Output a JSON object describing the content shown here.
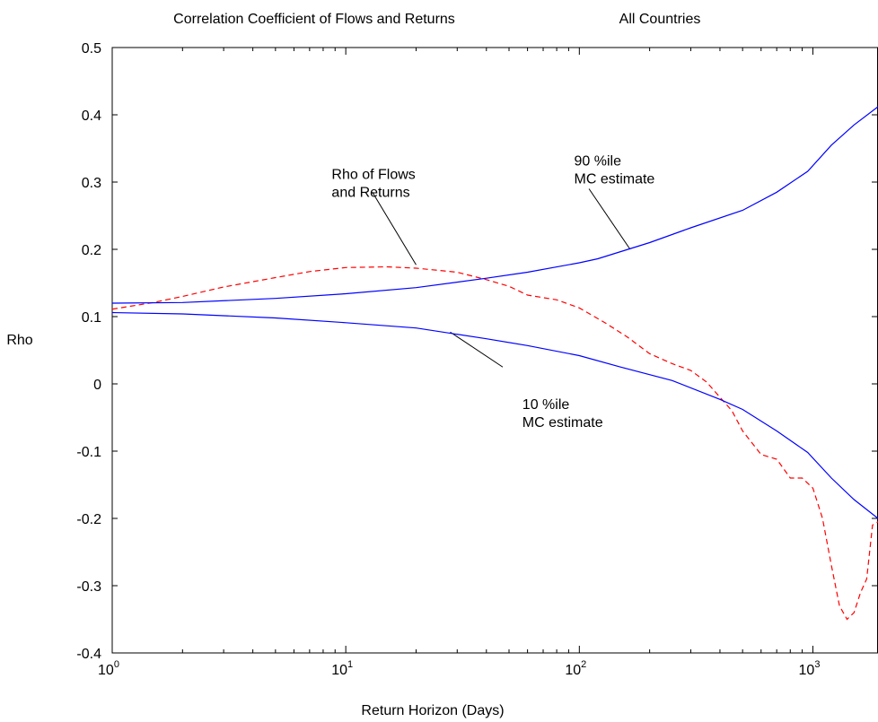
{
  "chart_data": {
    "type": "line",
    "title": "Correlation Coefficient of Flows and Returns",
    "subtitle": "All Countries",
    "xlabel": "Return Horizon (Days)",
    "ylabel": "Rho",
    "x_scale": "log",
    "xlim": [
      1,
      1900
    ],
    "ylim": [
      -0.4,
      0.5
    ],
    "grid": false,
    "x_ticks": [
      {
        "value": 1,
        "base": "10",
        "exp": "0"
      },
      {
        "value": 10,
        "base": "10",
        "exp": "1"
      },
      {
        "value": 100,
        "base": "10",
        "exp": "2"
      },
      {
        "value": 1000,
        "base": "10",
        "exp": "3"
      }
    ],
    "y_ticks": [
      {
        "value": 0.5,
        "label": "0.5"
      },
      {
        "value": 0.4,
        "label": "0.4"
      },
      {
        "value": 0.3,
        "label": "0.3"
      },
      {
        "value": 0.2,
        "label": "0.2"
      },
      {
        "value": 0.1,
        "label": "0.1"
      },
      {
        "value": 0,
        "label": "0"
      },
      {
        "value": -0.1,
        "label": "-0.1"
      },
      {
        "value": -0.2,
        "label": "-0.2"
      },
      {
        "value": -0.3,
        "label": "-0.3"
      },
      {
        "value": -0.4,
        "label": "-0.4"
      }
    ],
    "series": [
      {
        "color": "#ff0000",
        "style": "dashed",
        "points": [
          [
            1,
            0.111
          ],
          [
            1.5,
            0.121
          ],
          [
            2,
            0.13
          ],
          [
            3,
            0.144
          ],
          [
            5,
            0.158
          ],
          [
            7,
            0.167
          ],
          [
            10,
            0.173
          ],
          [
            15,
            0.174
          ],
          [
            20,
            0.172
          ],
          [
            30,
            0.166
          ],
          [
            40,
            0.155
          ],
          [
            50,
            0.145
          ],
          [
            60,
            0.132
          ],
          [
            80,
            0.125
          ],
          [
            100,
            0.113
          ],
          [
            130,
            0.09
          ],
          [
            160,
            0.07
          ],
          [
            200,
            0.045
          ],
          [
            250,
            0.03
          ],
          [
            300,
            0.02
          ],
          [
            350,
            0.003
          ],
          [
            400,
            -0.02
          ],
          [
            450,
            -0.04
          ],
          [
            500,
            -0.07
          ],
          [
            600,
            -0.105
          ],
          [
            700,
            -0.112
          ],
          [
            800,
            -0.14
          ],
          [
            900,
            -0.14
          ],
          [
            1000,
            -0.155
          ],
          [
            1100,
            -0.2
          ],
          [
            1200,
            -0.27
          ],
          [
            1300,
            -0.33
          ],
          [
            1400,
            -0.35
          ],
          [
            1500,
            -0.34
          ],
          [
            1600,
            -0.31
          ],
          [
            1700,
            -0.29
          ],
          [
            1800,
            -0.21
          ],
          [
            1900,
            -0.205
          ]
        ]
      },
      {
        "color": "#0000ff",
        "style": "solid",
        "points": [
          [
            1,
            0.12
          ],
          [
            2,
            0.121
          ],
          [
            5,
            0.127
          ],
          [
            10,
            0.134
          ],
          [
            20,
            0.143
          ],
          [
            40,
            0.157
          ],
          [
            60,
            0.166
          ],
          [
            100,
            0.18
          ],
          [
            120,
            0.186
          ],
          [
            200,
            0.21
          ],
          [
            300,
            0.232
          ],
          [
            500,
            0.258
          ],
          [
            700,
            0.285
          ],
          [
            950,
            0.316
          ],
          [
            1200,
            0.355
          ],
          [
            1500,
            0.385
          ],
          [
            1900,
            0.412
          ]
        ]
      },
      {
        "color": "#0000ff",
        "style": "solid",
        "points": [
          [
            1,
            0.106
          ],
          [
            2,
            0.104
          ],
          [
            5,
            0.098
          ],
          [
            10,
            0.091
          ],
          [
            20,
            0.083
          ],
          [
            40,
            0.067
          ],
          [
            60,
            0.057
          ],
          [
            100,
            0.042
          ],
          [
            150,
            0.025
          ],
          [
            250,
            0.005
          ],
          [
            400,
            -0.023
          ],
          [
            500,
            -0.038
          ],
          [
            700,
            -0.07
          ],
          [
            950,
            -0.102
          ],
          [
            1200,
            -0.14
          ],
          [
            1500,
            -0.172
          ],
          [
            1900,
            -0.2
          ]
        ]
      }
    ],
    "annotations": [
      {
        "lines": [
          "Rho of Flows",
          "and Returns"
        ],
        "x": 8.7,
        "y": 0.305,
        "pointer_from": [
          13,
          0.285
        ],
        "pointer_to": [
          20,
          0.177
        ]
      },
      {
        "lines": [
          "90 %ile",
          "MC estimate"
        ],
        "x": 95,
        "y": 0.325,
        "pointer_from": [
          110,
          0.29
        ],
        "pointer_to": [
          165,
          0.2
        ]
      },
      {
        "lines": [
          "10 %ile",
          "MC estimate"
        ],
        "x": 57,
        "y": -0.037,
        "pointer_from": [
          47,
          0.025
        ],
        "pointer_to": [
          28,
          0.077
        ]
      }
    ]
  }
}
